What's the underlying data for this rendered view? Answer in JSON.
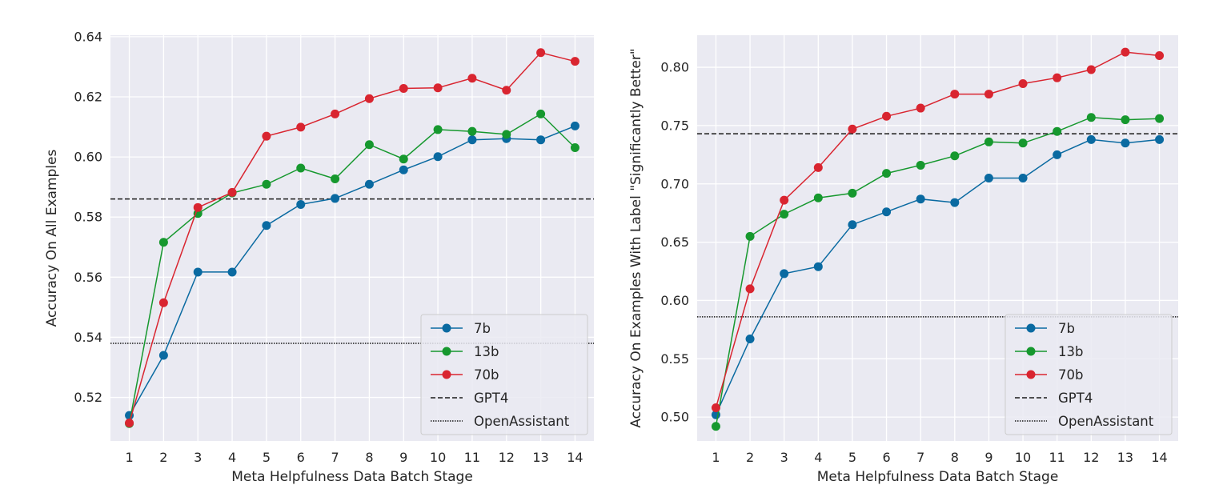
{
  "chart_data": [
    {
      "type": "line",
      "xlabel": "Meta Helpfulness Data Batch Stage",
      "ylabel": "Accuracy On All Examples",
      "x": [
        1,
        2,
        3,
        4,
        5,
        6,
        7,
        8,
        9,
        10,
        11,
        12,
        13,
        14
      ],
      "xlim": [
        0.45,
        14.55
      ],
      "ylim": [
        0.5055,
        0.6405
      ],
      "yticks": [
        0.52,
        0.54,
        0.56,
        0.58,
        0.6,
        0.62,
        0.64
      ],
      "ytick_labels": [
        "0.52",
        "0.54",
        "0.56",
        "0.58",
        "0.60",
        "0.62",
        "0.64"
      ],
      "grid": true,
      "legend_position": "lower-right",
      "series": [
        {
          "name": "7b",
          "color": "#0a6aa1",
          "values": [
            0.514,
            0.534,
            0.5617,
            0.5617,
            0.5772,
            0.5842,
            0.5862,
            0.5909,
            0.5957,
            0.6001,
            0.6057,
            0.6061,
            0.6057,
            0.6103
          ]
        },
        {
          "name": "13b",
          "color": "#16982e",
          "values": [
            0.5113,
            0.5716,
            0.5812,
            0.588,
            0.5909,
            0.5963,
            0.5927,
            0.6041,
            0.5993,
            0.6091,
            0.6085,
            0.6075,
            0.6143,
            0.6031
          ]
        },
        {
          "name": "70b",
          "color": "#d92530",
          "values": [
            0.5115,
            0.5515,
            0.5832,
            0.5882,
            0.6069,
            0.6099,
            0.6143,
            0.6194,
            0.6228,
            0.623,
            0.6262,
            0.6222,
            0.6347,
            0.6318
          ]
        }
      ],
      "reference_lines": [
        {
          "name": "GPT4",
          "style": "dashed",
          "value": 0.586
        },
        {
          "name": "OpenAssistant",
          "style": "dotted",
          "value": 0.538
        }
      ]
    },
    {
      "type": "line",
      "xlabel": "Meta Helpfulness Data Batch Stage",
      "ylabel": "Accuracy On Examples With Label \"Significantly Better\"",
      "x": [
        1,
        2,
        3,
        4,
        5,
        6,
        7,
        8,
        9,
        10,
        11,
        12,
        13,
        14
      ],
      "xlim": [
        0.45,
        14.55
      ],
      "ylim": [
        0.4795,
        0.8275
      ],
      "yticks": [
        0.5,
        0.55,
        0.6,
        0.65,
        0.7,
        0.75,
        0.8
      ],
      "ytick_labels": [
        "0.50",
        "0.55",
        "0.60",
        "0.65",
        "0.70",
        "0.75",
        "0.80"
      ],
      "grid": true,
      "legend_position": "lower-right",
      "series": [
        {
          "name": "7b",
          "color": "#0a6aa1",
          "values": [
            0.502,
            0.567,
            0.623,
            0.629,
            0.665,
            0.676,
            0.687,
            0.684,
            0.705,
            0.705,
            0.725,
            0.738,
            0.735,
            0.738
          ]
        },
        {
          "name": "13b",
          "color": "#16982e",
          "values": [
            0.492,
            0.655,
            0.674,
            0.688,
            0.692,
            0.709,
            0.716,
            0.724,
            0.736,
            0.735,
            0.745,
            0.757,
            0.755,
            0.756
          ]
        },
        {
          "name": "70b",
          "color": "#d92530",
          "values": [
            0.508,
            0.61,
            0.686,
            0.714,
            0.747,
            0.758,
            0.765,
            0.777,
            0.777,
            0.786,
            0.791,
            0.798,
            0.813,
            0.81
          ]
        }
      ],
      "reference_lines": [
        {
          "name": "GPT4",
          "style": "dashed",
          "value": 0.743
        },
        {
          "name": "OpenAssistant",
          "style": "dotted",
          "value": 0.586
        }
      ]
    }
  ]
}
